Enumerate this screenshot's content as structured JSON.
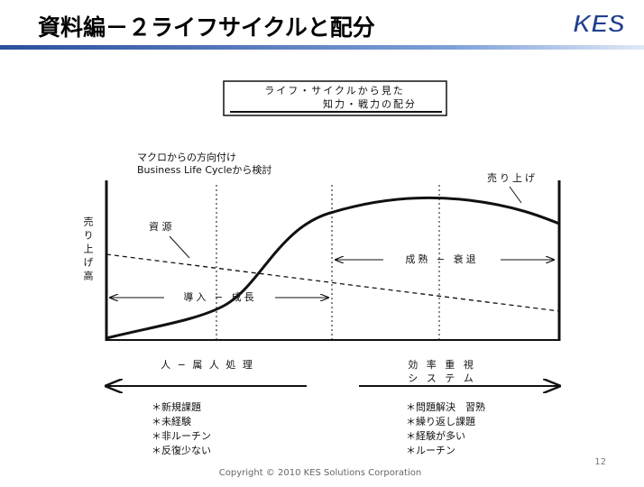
{
  "header": {
    "title": "資料編－２ライフサイクルと配分",
    "logo": "KES"
  },
  "diagram": {
    "box_title": [
      "ライフ・サイクルから見た",
      "知力・戦力の配分"
    ],
    "note": [
      "マクロからの方向付け",
      "Business Life Cycleから検討"
    ],
    "y_label": "売り上げ高",
    "curve_labels": {
      "resources": "資 源",
      "sales": "売り上げ"
    },
    "phases": [
      "導入 − 成長",
      "成熟 − 衰退"
    ],
    "left": {
      "heading": "人 − 属 人 処 理",
      "items": [
        "＊新規課題",
        "＊未経験",
        "＊非ルーチン",
        "＊反復少ない"
      ]
    },
    "right": {
      "heading": [
        "効 率 重 視",
        "シ ス テ ム"
      ],
      "items": [
        "＊問題解決　習熟",
        "＊繰り返し課題",
        "＊経験が多い",
        "＊ルーチン"
      ]
    }
  },
  "footer": {
    "page": "12",
    "copyright": "Copyright  © 2010 KES Solutions Corporation"
  }
}
